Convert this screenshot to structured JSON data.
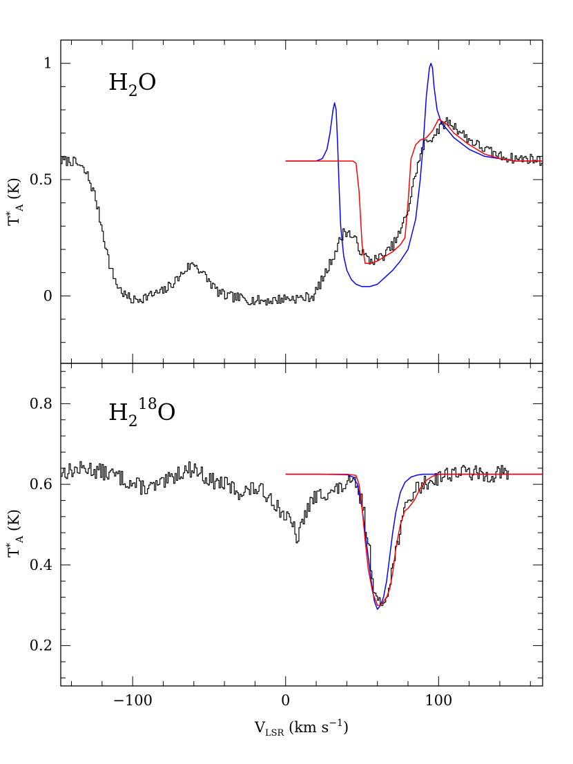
{
  "chart_data": [
    {
      "type": "line",
      "panel": "top",
      "label": {
        "base": "H",
        "sub": "2",
        "sup": "",
        "tail": "O"
      },
      "ylabel": {
        "base": "T",
        "sup": "*",
        "sub": "A",
        "tail": " (K)"
      },
      "xlabel": "",
      "xlim": [
        -147,
        168
      ],
      "ylim": [
        -0.29,
        1.1
      ],
      "x_ticks": [
        -100,
        0,
        100
      ],
      "x_tick_labels": [
        "",
        "",
        ""
      ],
      "y_ticks": [
        0,
        0.5,
        1
      ],
      "y_tick_labels": [
        "0",
        "0.5",
        "1"
      ],
      "series": [
        {
          "name": "observed",
          "color": "#000000",
          "style": "histogram",
          "noise": 0.022,
          "seed": 7,
          "x": [
            -147,
            -140,
            -135,
            -130,
            -125,
            -120,
            -115,
            -110,
            -105,
            -100,
            -90,
            -80,
            -70,
            -65,
            -60,
            -55,
            -50,
            -45,
            -40,
            -30,
            -20,
            -10,
            0,
            10,
            18,
            22,
            26,
            30,
            34,
            38,
            41,
            45,
            50,
            55,
            60,
            65,
            70,
            75,
            80,
            85,
            90,
            95,
            100,
            105,
            110,
            115,
            120,
            130,
            140,
            150,
            160,
            168
          ],
          "y": [
            0.58,
            0.58,
            0.56,
            0.52,
            0.43,
            0.28,
            0.12,
            0.04,
            0.0,
            -0.02,
            0.0,
            0.02,
            0.08,
            0.12,
            0.14,
            0.1,
            0.06,
            0.02,
            0.0,
            -0.01,
            -0.02,
            -0.02,
            -0.01,
            -0.01,
            0.0,
            0.05,
            0.1,
            0.16,
            0.22,
            0.28,
            0.27,
            0.24,
            0.18,
            0.15,
            0.16,
            0.18,
            0.22,
            0.28,
            0.38,
            0.54,
            0.65,
            0.68,
            0.72,
            0.75,
            0.73,
            0.7,
            0.67,
            0.63,
            0.6,
            0.59,
            0.59,
            0.58
          ]
        },
        {
          "name": "model-blue",
          "color": "#0000ff",
          "style": "line",
          "x": [
            0,
            15,
            20,
            24,
            27,
            29,
            31,
            32,
            33,
            34,
            35,
            36,
            38,
            40,
            43,
            46,
            50,
            55,
            60,
            65,
            70,
            75,
            80,
            85,
            88,
            90,
            92,
            94,
            95,
            96,
            97,
            99,
            102,
            105,
            110,
            120,
            130,
            140,
            150,
            168
          ],
          "y": [
            0.58,
            0.58,
            0.58,
            0.59,
            0.63,
            0.7,
            0.8,
            0.83,
            0.8,
            0.65,
            0.46,
            0.3,
            0.17,
            0.11,
            0.07,
            0.05,
            0.04,
            0.04,
            0.05,
            0.08,
            0.11,
            0.15,
            0.2,
            0.33,
            0.5,
            0.66,
            0.86,
            0.98,
            1.0,
            0.98,
            0.9,
            0.8,
            0.74,
            0.72,
            0.68,
            0.63,
            0.6,
            0.59,
            0.58,
            0.58
          ]
        },
        {
          "name": "model-red",
          "color": "#ff0000",
          "style": "line",
          "x": [
            0,
            30,
            40,
            44,
            46,
            48,
            50,
            52,
            55,
            60,
            65,
            70,
            75,
            78,
            80,
            82,
            85,
            88,
            92,
            96,
            100,
            105,
            110,
            120,
            130,
            140,
            150,
            168
          ],
          "y": [
            0.58,
            0.58,
            0.58,
            0.58,
            0.57,
            0.45,
            0.22,
            0.14,
            0.14,
            0.15,
            0.17,
            0.19,
            0.22,
            0.25,
            0.4,
            0.59,
            0.65,
            0.67,
            0.68,
            0.71,
            0.76,
            0.74,
            0.7,
            0.65,
            0.61,
            0.59,
            0.58,
            0.58
          ]
        }
      ]
    },
    {
      "type": "line",
      "panel": "bottom",
      "label": {
        "base": "H",
        "sub": "2",
        "sup": "18",
        "tail": "O"
      },
      "ylabel": {
        "base": "T",
        "sup": "*",
        "sub": "A",
        "tail": " (K)"
      },
      "xlabel": {
        "base": "V",
        "sub": "LSR",
        "mid": " (km s",
        "sup": "−1",
        "tail": ")"
      },
      "xlim": [
        -147,
        168
      ],
      "ylim": [
        0.1,
        0.9
      ],
      "x_ticks": [
        -100,
        0,
        100
      ],
      "x_tick_labels": [
        "−100",
        "0",
        "100"
      ],
      "y_ticks": [
        0.2,
        0.4,
        0.6,
        0.8
      ],
      "y_tick_labels": [
        "0.2",
        "0.4",
        "0.6",
        "0.8"
      ],
      "series": [
        {
          "name": "observed",
          "color": "#000000",
          "style": "histogram",
          "noise": 0.02,
          "seed": 13,
          "x": [
            -147,
            -130,
            -110,
            -100,
            -90,
            -80,
            -70,
            -60,
            -50,
            -40,
            -30,
            -20,
            -10,
            -5,
            0,
            5,
            8,
            10,
            15,
            20,
            25,
            30,
            35,
            40,
            45,
            50,
            55,
            58,
            60,
            62,
            65,
            70,
            75,
            80,
            85,
            90,
            95,
            100,
            110,
            120,
            130,
            140,
            146
          ],
          "y": [
            0.63,
            0.64,
            0.62,
            0.6,
            0.59,
            0.6,
            0.63,
            0.64,
            0.61,
            0.6,
            0.58,
            0.59,
            0.57,
            0.54,
            0.52,
            0.49,
            0.46,
            0.5,
            0.55,
            0.57,
            0.58,
            0.58,
            0.59,
            0.6,
            0.6,
            0.55,
            0.42,
            0.33,
            0.3,
            0.3,
            0.32,
            0.4,
            0.5,
            0.56,
            0.59,
            0.6,
            0.61,
            0.62,
            0.63,
            0.63,
            0.62,
            0.63,
            0.62
          ]
        },
        {
          "name": "model-blue",
          "color": "#0000ff",
          "style": "line",
          "x": [
            0,
            20,
            40,
            44,
            47,
            50,
            53,
            56,
            58,
            60,
            62,
            64,
            66,
            68,
            70,
            72,
            75,
            78,
            82,
            86,
            90,
            100,
            120,
            168
          ],
          "y": [
            0.625,
            0.625,
            0.624,
            0.618,
            0.6,
            0.54,
            0.45,
            0.36,
            0.31,
            0.29,
            0.3,
            0.32,
            0.36,
            0.42,
            0.48,
            0.53,
            0.58,
            0.605,
            0.618,
            0.623,
            0.625,
            0.625,
            0.625,
            0.625
          ]
        },
        {
          "name": "model-red",
          "color": "#ff0000",
          "style": "line",
          "x": [
            0,
            20,
            40,
            46,
            48,
            50,
            52,
            54,
            57,
            60,
            62,
            64,
            66,
            68,
            70,
            72,
            75,
            78,
            80,
            84,
            88,
            92,
            96,
            100,
            120,
            168
          ],
          "y": [
            0.625,
            0.625,
            0.625,
            0.622,
            0.6,
            0.54,
            0.46,
            0.39,
            0.33,
            0.3,
            0.3,
            0.31,
            0.32,
            0.34,
            0.38,
            0.44,
            0.5,
            0.535,
            0.54,
            0.56,
            0.59,
            0.61,
            0.62,
            0.625,
            0.625,
            0.625
          ]
        }
      ]
    }
  ]
}
